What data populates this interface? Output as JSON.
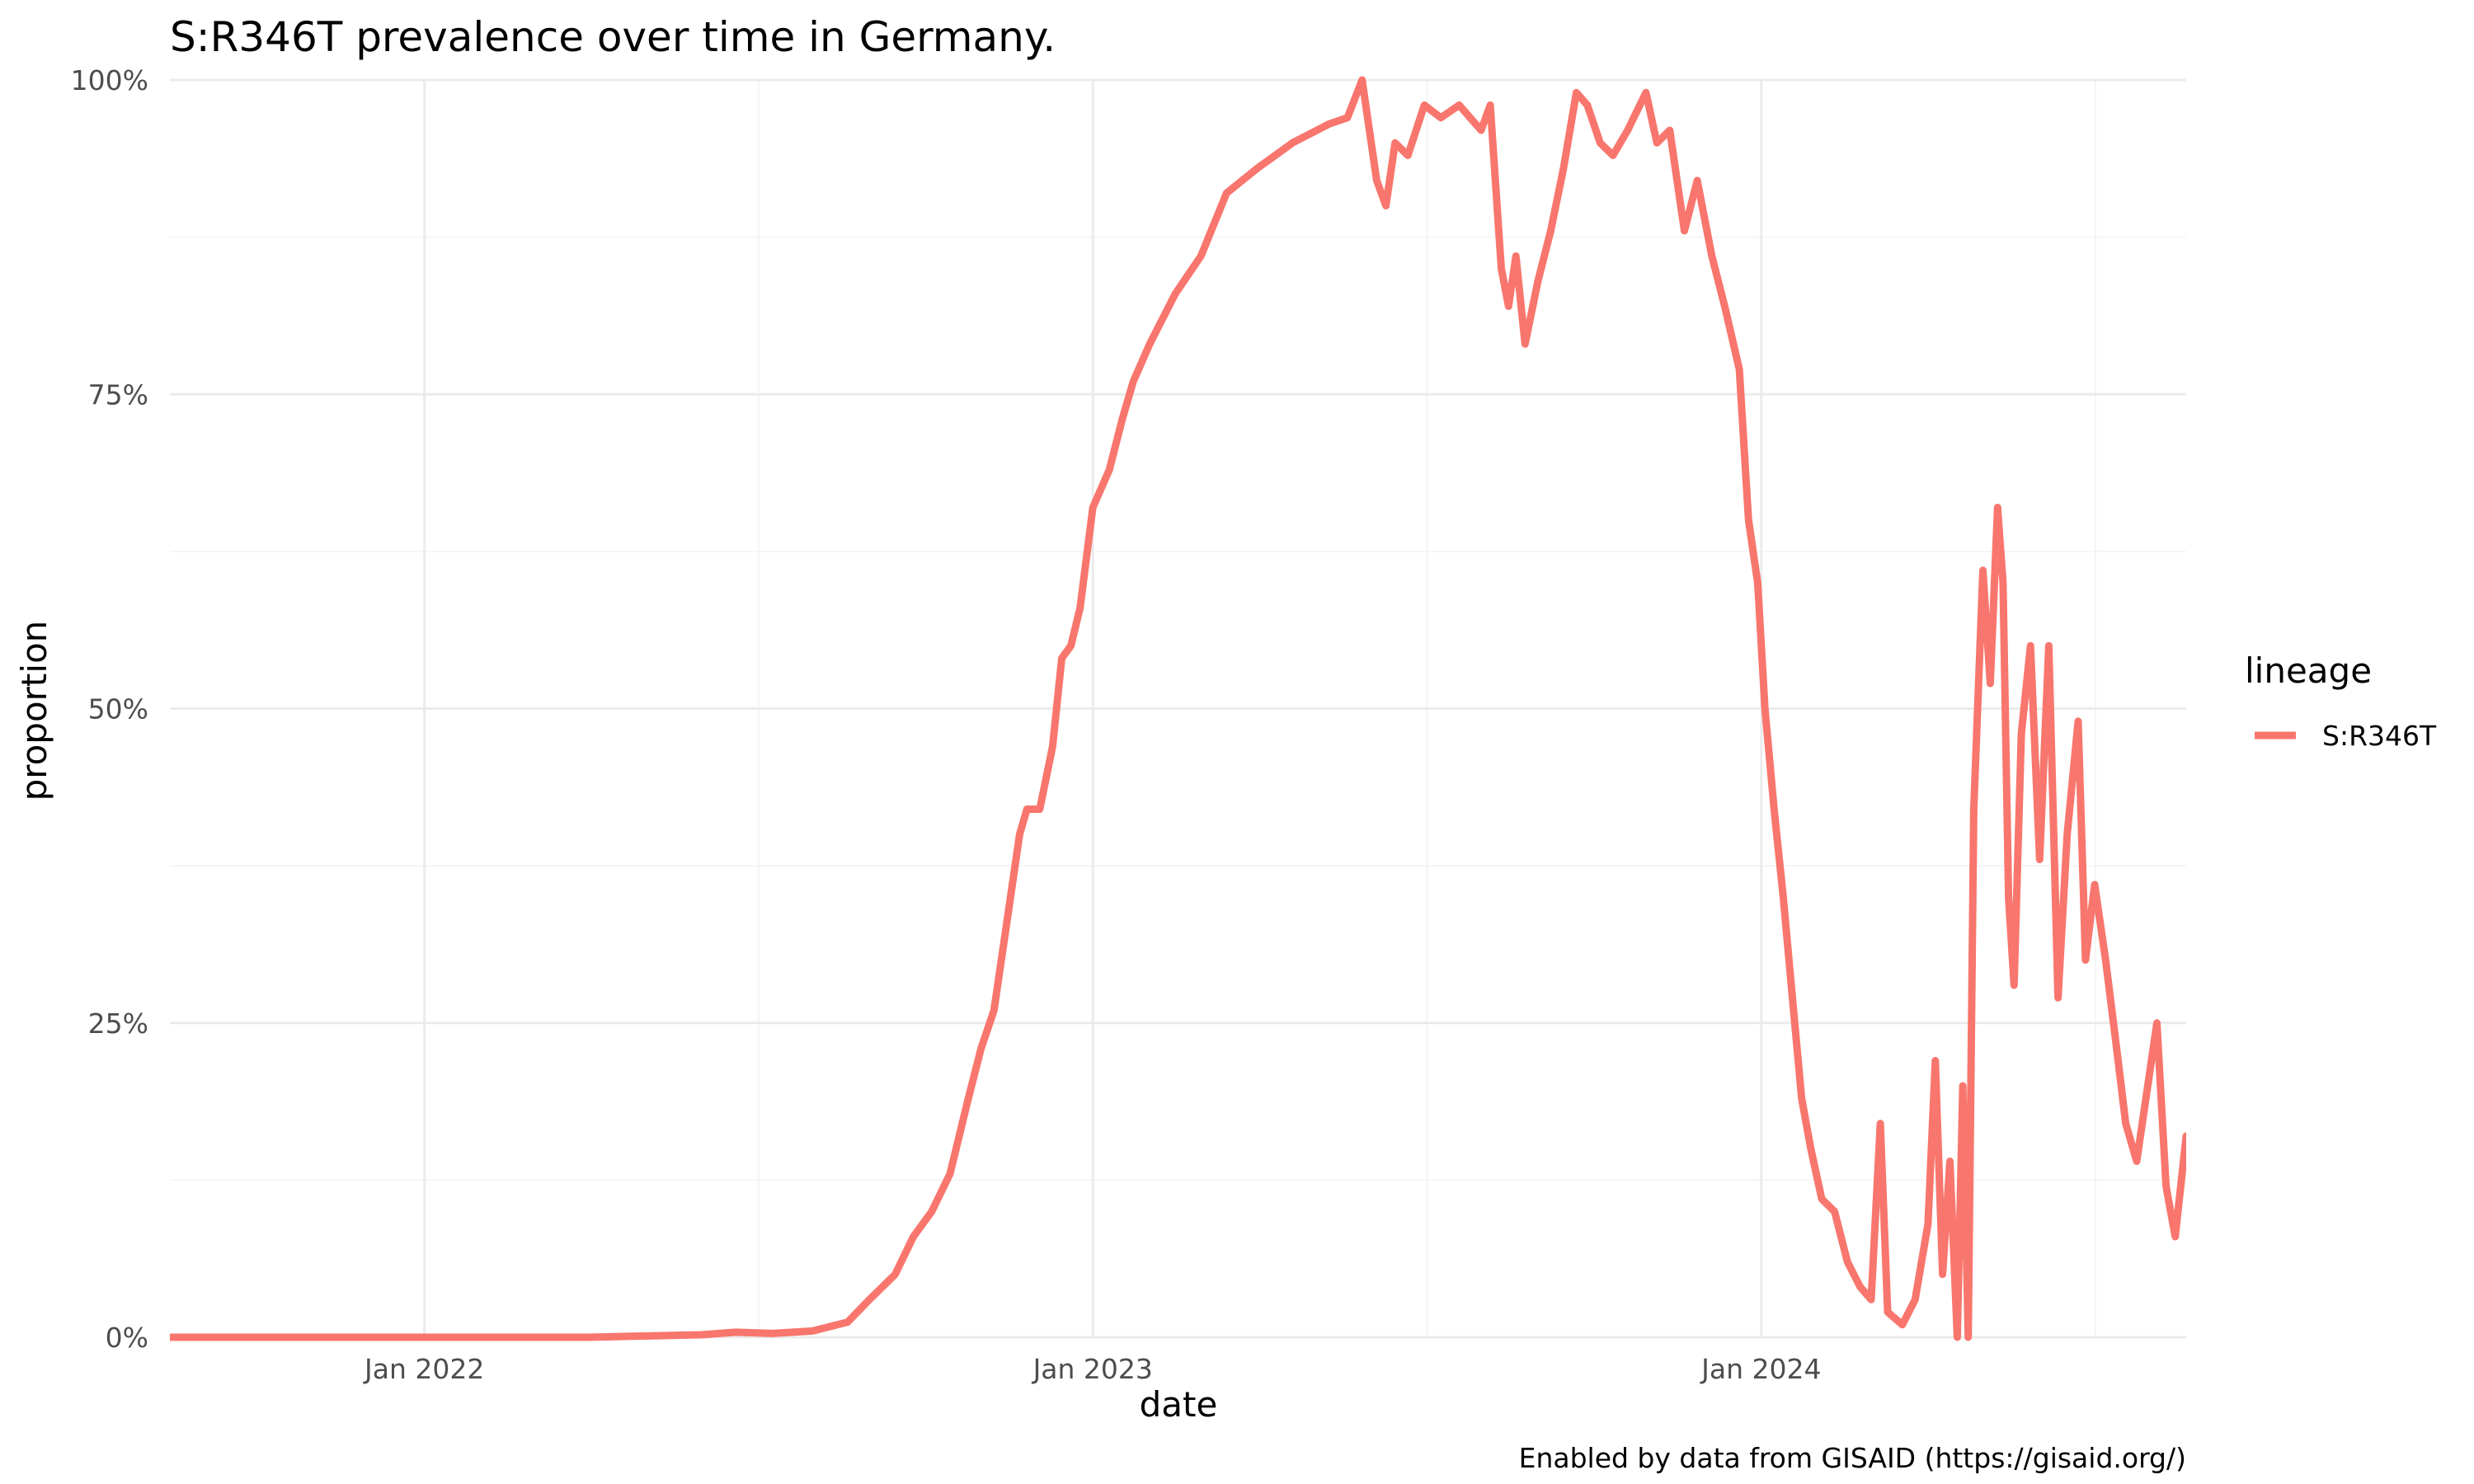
{
  "chart_data": {
    "type": "line",
    "title": "S:R346T prevalence over time in Germany.",
    "xlabel": "date",
    "ylabel": "proportion",
    "caption": "Enabled by data from GISAID (https://gisaid.org/)",
    "x_range": [
      "2021-08-15",
      "2024-08-20"
    ],
    "x_ticks": [
      "2022-01-01",
      "2023-01-01",
      "2024-01-01"
    ],
    "x_tick_labels": [
      "Jan 2022",
      "Jan 2023",
      "Jan 2024"
    ],
    "ylim": [
      0,
      1
    ],
    "y_ticks": [
      0,
      0.25,
      0.5,
      0.75,
      1.0
    ],
    "y_tick_labels": [
      "0%",
      "25%",
      "50%",
      "75%",
      "100%"
    ],
    "grid": true,
    "legend": {
      "title": "lineage",
      "placement": "right"
    },
    "series": [
      {
        "name": "S:R346T",
        "color": "#F8766D",
        "points": [
          [
            "2021-08-15",
            0.0
          ],
          [
            "2021-10-01",
            0.0
          ],
          [
            "2021-12-01",
            0.0
          ],
          [
            "2022-02-01",
            0.0
          ],
          [
            "2022-04-01",
            0.0
          ],
          [
            "2022-05-01",
            0.001
          ],
          [
            "2022-06-01",
            0.002
          ],
          [
            "2022-06-20",
            0.004
          ],
          [
            "2022-07-10",
            0.003
          ],
          [
            "2022-08-01",
            0.005
          ],
          [
            "2022-08-20",
            0.012
          ],
          [
            "2022-09-01",
            0.03
          ],
          [
            "2022-09-15",
            0.05
          ],
          [
            "2022-09-25",
            0.08
          ],
          [
            "2022-10-05",
            0.1
          ],
          [
            "2022-10-15",
            0.13
          ],
          [
            "2022-10-25",
            0.19
          ],
          [
            "2022-11-01",
            0.23
          ],
          [
            "2022-11-08",
            0.26
          ],
          [
            "2022-11-15",
            0.33
          ],
          [
            "2022-11-22",
            0.4
          ],
          [
            "2022-11-26",
            0.42
          ],
          [
            "2022-12-03",
            0.42
          ],
          [
            "2022-12-10",
            0.47
          ],
          [
            "2022-12-15",
            0.54
          ],
          [
            "2022-12-20",
            0.55
          ],
          [
            "2022-12-25",
            0.58
          ],
          [
            "2023-01-01",
            0.66
          ],
          [
            "2023-01-10",
            0.69
          ],
          [
            "2023-01-17",
            0.73
          ],
          [
            "2023-01-23",
            0.76
          ],
          [
            "2023-02-01",
            0.79
          ],
          [
            "2023-02-15",
            0.83
          ],
          [
            "2023-03-01",
            0.86
          ],
          [
            "2023-03-15",
            0.91
          ],
          [
            "2023-04-01",
            0.93
          ],
          [
            "2023-04-20",
            0.95
          ],
          [
            "2023-05-10",
            0.965
          ],
          [
            "2023-05-20",
            0.97
          ],
          [
            "2023-05-28",
            1.0
          ],
          [
            "2023-06-05",
            0.92
          ],
          [
            "2023-06-10",
            0.9
          ],
          [
            "2023-06-15",
            0.95
          ],
          [
            "2023-06-22",
            0.94
          ],
          [
            "2023-07-01",
            0.98
          ],
          [
            "2023-07-10",
            0.97
          ],
          [
            "2023-07-20",
            0.98
          ],
          [
            "2023-08-01",
            0.96
          ],
          [
            "2023-08-06",
            0.98
          ],
          [
            "2023-08-12",
            0.85
          ],
          [
            "2023-08-16",
            0.82
          ],
          [
            "2023-08-20",
            0.86
          ],
          [
            "2023-08-25",
            0.79
          ],
          [
            "2023-09-01",
            0.84
          ],
          [
            "2023-09-08",
            0.88
          ],
          [
            "2023-09-15",
            0.93
          ],
          [
            "2023-09-22",
            0.99
          ],
          [
            "2023-09-28",
            0.98
          ],
          [
            "2023-10-05",
            0.95
          ],
          [
            "2023-10-12",
            0.94
          ],
          [
            "2023-10-20",
            0.96
          ],
          [
            "2023-10-30",
            0.99
          ],
          [
            "2023-11-05",
            0.95
          ],
          [
            "2023-11-12",
            0.96
          ],
          [
            "2023-11-20",
            0.88
          ],
          [
            "2023-11-27",
            0.92
          ],
          [
            "2023-12-05",
            0.86
          ],
          [
            "2023-12-12",
            0.82
          ],
          [
            "2023-12-20",
            0.77
          ],
          [
            "2023-12-25",
            0.65
          ],
          [
            "2023-12-30",
            0.6
          ],
          [
            "2024-01-03",
            0.5
          ],
          [
            "2024-01-08",
            0.42
          ],
          [
            "2024-01-13",
            0.35
          ],
          [
            "2024-01-18",
            0.27
          ],
          [
            "2024-01-23",
            0.19
          ],
          [
            "2024-01-28",
            0.15
          ],
          [
            "2024-02-03",
            0.11
          ],
          [
            "2024-02-10",
            0.1
          ],
          [
            "2024-02-17",
            0.06
          ],
          [
            "2024-02-24",
            0.04
          ],
          [
            "2024-03-01",
            0.03
          ],
          [
            "2024-03-06",
            0.17
          ],
          [
            "2024-03-10",
            0.02
          ],
          [
            "2024-03-18",
            0.01
          ],
          [
            "2024-03-25",
            0.03
          ],
          [
            "2024-04-01",
            0.09
          ],
          [
            "2024-04-05",
            0.22
          ],
          [
            "2024-04-09",
            0.05
          ],
          [
            "2024-04-13",
            0.14
          ],
          [
            "2024-04-17",
            0.0
          ],
          [
            "2024-04-20",
            0.2
          ],
          [
            "2024-04-23",
            0.0
          ],
          [
            "2024-04-26",
            0.42
          ],
          [
            "2024-05-01",
            0.61
          ],
          [
            "2024-05-05",
            0.52
          ],
          [
            "2024-05-09",
            0.66
          ],
          [
            "2024-05-12",
            0.6
          ],
          [
            "2024-05-15",
            0.35
          ],
          [
            "2024-05-18",
            0.28
          ],
          [
            "2024-05-22",
            0.48
          ],
          [
            "2024-05-27",
            0.55
          ],
          [
            "2024-06-01",
            0.38
          ],
          [
            "2024-06-06",
            0.55
          ],
          [
            "2024-06-11",
            0.27
          ],
          [
            "2024-06-16",
            0.4
          ],
          [
            "2024-06-22",
            0.49
          ],
          [
            "2024-06-26",
            0.3
          ],
          [
            "2024-07-01",
            0.36
          ],
          [
            "2024-07-07",
            0.3
          ],
          [
            "2024-07-13",
            0.23
          ],
          [
            "2024-07-18",
            0.17
          ],
          [
            "2024-07-24",
            0.14
          ],
          [
            "2024-07-30",
            0.2
          ],
          [
            "2024-08-04",
            0.25
          ],
          [
            "2024-08-09",
            0.12
          ],
          [
            "2024-08-14",
            0.08
          ],
          [
            "2024-08-20",
            0.16
          ]
        ]
      }
    ]
  }
}
